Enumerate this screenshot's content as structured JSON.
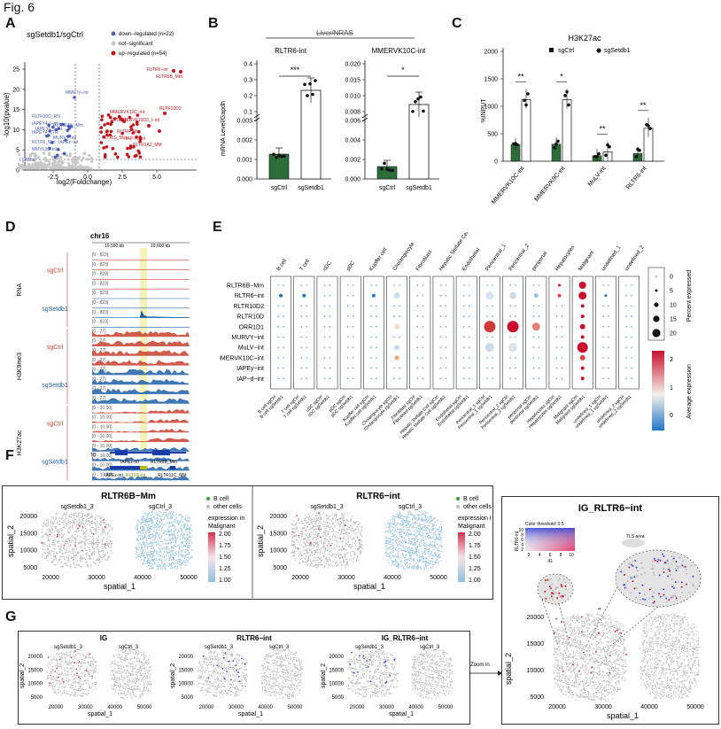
{
  "figure": {
    "title": "Fig. 6"
  },
  "panels": {
    "A": "A",
    "B": "B",
    "C": "C",
    "D": "D",
    "E": "E",
    "F": "F",
    "G": "G"
  },
  "panel_A": {
    "title": "sgSetdb1/sgCtrl",
    "legend": [
      "down−regulated (n=22)",
      "not−significant",
      "up−regulated (n=54)"
    ],
    "colors": {
      "down": "#4a5fb5",
      "ns": "#c8c8c8",
      "up": "#c0141c"
    },
    "xlabel": "log2(Foldchange)",
    "ylabel": "-log10(pvalue)",
    "x_ticks": [
      "-2.5",
      "0.0",
      "2.5",
      "5.0"
    ],
    "y_ticks": [
      "0",
      "5",
      "10",
      "15",
      "20",
      "25"
    ],
    "labels_up": [
      "RLTR6−int",
      "RLTR6B_Mm",
      "RLTR10D2",
      "MMERVK10C−int",
      "MMERVK10D3_I−int",
      "RLTR9D",
      "RLTR4_Mm",
      "IAP−d−int",
      "LTRIS_Mus",
      "RLTR1A2_MM"
    ],
    "labels_down": [
      "MMETn−int",
      "RLTR30D_RN",
      "IAPEY4_I−int",
      "IAPEY4_LTR",
      "RLTR6_Mm",
      "MMVL30−int",
      "LTR85b",
      "RLTRETN_Mm",
      "IAPEY5_I−int",
      "MURVY−int",
      "IAPEz−int"
    ]
  },
  "panel_B": {
    "title": "Liver/NRAS",
    "ylabel": "mRNA Level/Gapdh",
    "charts": [
      {
        "title": "RLTR6-int",
        "y_ticks": [
          "0.000",
          "0.001",
          "0.002",
          "0.003",
          "0.1",
          "0.2",
          "0.3",
          "0.4"
        ],
        "sig": "***"
      },
      {
        "title": "MMERVK10C-int",
        "y_ticks": [
          "0.000",
          "0.002",
          "0.004",
          "0.006",
          "0.008",
          "0.010",
          "0.015",
          "0.020"
        ],
        "sig": "*"
      }
    ],
    "xlabels": [
      "sgCtrl",
      "sgSetdb1"
    ]
  },
  "panel_C": {
    "title": "H3K27ac",
    "legend": [
      "sgCtrl",
      "sgSetdb1"
    ],
    "ylabel": "%INPUT",
    "y_ticks": [
      "0",
      "500",
      "1000",
      "1500",
      "2000"
    ],
    "categories": [
      "MMERVK10C-int",
      "MMERVK9C-int",
      "MuLV-int",
      "RLTR6-int"
    ],
    "sig": [
      "**",
      "*",
      "**",
      "**"
    ]
  },
  "chart_data": [
    {
      "type": "bar",
      "title": "RLTR6-int",
      "categories": [
        "sgCtrl",
        "sgSetdb1"
      ],
      "values": [
        0.0017,
        0.29
      ],
      "ylabel": "mRNA Level/Gapdh"
    },
    {
      "type": "bar",
      "title": "MMERVK10C-int",
      "categories": [
        "sgCtrl",
        "sgSetdb1"
      ],
      "values": [
        0.0026,
        0.0095
      ],
      "ylabel": "mRNA Level/Gapdh"
    },
    {
      "type": "bar",
      "title": "H3K27ac",
      "categories": [
        "MMERVK10C-int",
        "MMERVK9C-int",
        "MuLV-int",
        "RLTR6-int"
      ],
      "series": [
        {
          "name": "sgCtrl",
          "values": [
            300,
            310,
            100,
            140
          ]
        },
        {
          "name": "sgSetdb1",
          "values": [
            1120,
            1120,
            170,
            600
          ]
        }
      ],
      "ylabel": "%INPUT",
      "ylim": [
        0,
        2000
      ]
    }
  ],
  "panel_D": {
    "chrom": "chr16",
    "coords": [
      "19,590 kb",
      "19,600 kb"
    ],
    "groups": [
      {
        "name": "RNA",
        "rows": [
          "sgCtrl",
          "sgSetdb1"
        ]
      },
      {
        "name": "H3K9me3",
        "rows": [
          "sgCtrl",
          "sgSetdb1"
        ]
      },
      {
        "name": "H3K27ac",
        "rows": [
          "sgCtrl",
          "sgSetdb1"
        ]
      }
    ],
    "ranges": [
      "[0 - 823]",
      "[0 - 27]",
      "[0 - 10.00]"
    ],
    "annot": [
      "TD",
      "IAPEz-int",
      "RLTR6B_Mm",
      "IAPEz-int",
      "RLTR6-int",
      "RLTR11C_MM"
    ]
  },
  "panel_E": {
    "cell_types": [
      "B cell",
      "T cell",
      "cDC",
      "pDC",
      "Kupffer cell",
      "Cholangiocyte",
      "Fibroblast",
      "Hepatic Stellate Cell",
      "Endothelial",
      "Pericentral_1",
      "Pericentral_2",
      "periportal",
      "Hepatocytes",
      "Malignant",
      "undefined_1",
      "undefined_2"
    ],
    "features": [
      "RLTR6B−Mm",
      "RLTR6−int",
      "RLTR10D2",
      "RLTR10D",
      "ORR1D1",
      "MURVY−int",
      "MuLV−int",
      "MMERVK10C−int",
      "IAPEy−int",
      "IAP−d−int"
    ],
    "size_legend_title": "Percent expressed",
    "size_legend": [
      "0",
      "5",
      "10",
      "15",
      "20"
    ],
    "color_legend_title": "Average expression",
    "color_legend": [
      "2",
      "1",
      "0"
    ]
  },
  "panel_F": {
    "plots": [
      {
        "title": "RLTR6B−Mm",
        "left": "sgSetdb1_3",
        "right": "sgCtrl_3"
      },
      {
        "title": "RLTR6−int",
        "left": "sgSetdb1_3",
        "right": "sgCtrl_3"
      }
    ],
    "legend": [
      "B cell",
      "other cells"
    ],
    "expr_title": "expression in Malignant",
    "expr_ticks": [
      "2.00",
      "1.75",
      "1.50",
      "1.25",
      "1.00"
    ],
    "xlabel": "spatial_1",
    "ylabel": "spatial_2",
    "x_ticks": [
      "20000",
      "30000",
      "40000",
      "50000"
    ],
    "y_ticks": [
      "20000",
      "15000",
      "10000",
      "5000"
    ]
  },
  "panel_G": {
    "plots": [
      {
        "title": "IG",
        "left": "sgSetdb1_3",
        "right": "sgCtrl_3"
      },
      {
        "title": "RLTR6−int",
        "left": "sgSetdb1_3",
        "right": "sgCtrl_3"
      },
      {
        "title": "IG_RLTR6−int",
        "left": "sgSetdb1_3",
        "right": "sgCtrl_3"
      }
    ],
    "zoom_label": "Zoom in",
    "xlabel": "spatial_1",
    "ylabel": "spatial_2",
    "x_ticks": [
      "20000",
      "30000",
      "40000",
      "50000"
    ],
    "y_ticks": [
      "20000",
      "15000",
      "10000",
      "5000"
    ]
  },
  "zoom_panel": {
    "title": "IG_RLTR6−int",
    "threshold": "Color threshold: 0.5",
    "tls": "TLS area",
    "xlabel": "spatial_1",
    "ylabel": "spatial_2",
    "x_ticks": [
      "20000",
      "30000",
      "40000",
      "50000"
    ],
    "y_ticks": [
      "20000",
      "15000",
      "10000",
      "5000"
    ],
    "axis_ig": "IG",
    "axis_rltr": "RLTR6-int",
    "grid_ticks": [
      "2",
      "4",
      "6",
      "8",
      "10"
    ]
  }
}
